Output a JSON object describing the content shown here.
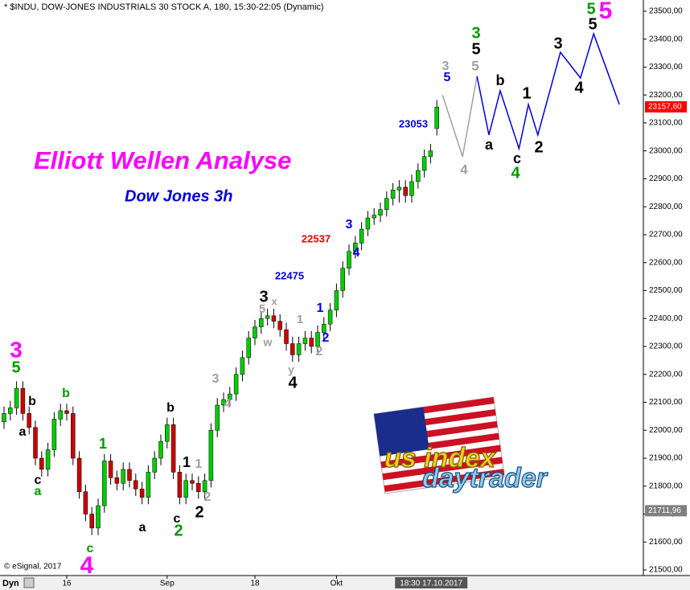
{
  "chart_data": {
    "type": "candlestick",
    "header": "* $INDU, DOW-JONES INDUSTRIALS 30 STOCK A, 180, 15:30-22:05 (Dynamic)",
    "title": "Elliott Wellen Analyse",
    "subtitle": "Dow Jones 3h",
    "footer": "© eSignal, 2017",
    "mode_label": "Dyn",
    "logo": {
      "line1": "us index",
      "line2": "daytrader"
    },
    "up_color": "#00cc00",
    "down_color": "#cc0000",
    "categories": [
      null,
      null,
      null,
      null,
      null,
      null,
      null,
      null,
      null,
      null,
      "16",
      null,
      null,
      null,
      null,
      null,
      null,
      null,
      null,
      null,
      null,
      null,
      null,
      null,
      null,
      null,
      "Sep",
      null,
      null,
      null,
      null,
      null,
      null,
      null,
      null,
      null,
      null,
      null,
      null,
      null,
      "18",
      null,
      null,
      null,
      null,
      null,
      null,
      null,
      null,
      null,
      null,
      null,
      null,
      "Okt",
      null,
      null,
      null,
      null,
      null,
      null,
      null,
      null,
      null,
      null,
      null,
      null,
      null,
      null,
      null,
      null
    ],
    "cursor_label": "18:30 17.10.2017",
    "open": [
      22030,
      22060,
      22080,
      22150,
      22060,
      22010,
      21900,
      21860,
      21930,
      22040,
      22070,
      22060,
      21900,
      21780,
      21700,
      21650,
      21730,
      21890,
      21830,
      21810,
      21860,
      21820,
      21790,
      21760,
      21850,
      21900,
      21960,
      22020,
      21850,
      21760,
      21820,
      21810,
      21780,
      21820,
      22000,
      22090,
      22110,
      22130,
      22200,
      22260,
      22330,
      22370,
      22400,
      22410,
      22390,
      22360,
      22310,
      22270,
      22310,
      22330,
      22300,
      22350,
      22380,
      22430,
      22500,
      22580,
      22640,
      22670,
      22720,
      22760,
      22770,
      22790,
      22830,
      22860,
      22870,
      22840,
      22890,
      22930,
      22980,
      23080
    ],
    "high": [
      22085,
      22105,
      22175,
      22175,
      22085,
      22035,
      21925,
      21955,
      22065,
      22095,
      22095,
      22085,
      21925,
      21805,
      21725,
      21755,
      21915,
      21915,
      21855,
      21885,
      21885,
      21845,
      21815,
      21875,
      21925,
      21985,
      22045,
      22045,
      21875,
      21845,
      21845,
      21835,
      21845,
      22025,
      22115,
      22135,
      22155,
      22225,
      22285,
      22355,
      22395,
      22425,
      22435,
      22435,
      22415,
      22385,
      22335,
      22335,
      22355,
      22355,
      22375,
      22405,
      22455,
      22525,
      22605,
      22665,
      22695,
      22745,
      22785,
      22795,
      22815,
      22855,
      22885,
      22895,
      22895,
      22915,
      22955,
      23005,
      23025,
      23182
    ],
    "low": [
      22005,
      22035,
      22055,
      22035,
      21985,
      21875,
      21835,
      21835,
      21905,
      22015,
      22035,
      21875,
      21755,
      21675,
      21625,
      21625,
      21705,
      21805,
      21785,
      21785,
      21795,
      21765,
      21735,
      21735,
      21825,
      21875,
      21935,
      21825,
      21735,
      21735,
      21785,
      21755,
      21755,
      21795,
      21975,
      22065,
      22085,
      22105,
      22175,
      22235,
      22305,
      22345,
      22375,
      22365,
      22335,
      22285,
      22245,
      22245,
      22285,
      22275,
      22275,
      22325,
      22355,
      22405,
      22475,
      22555,
      22615,
      22645,
      22695,
      22735,
      22745,
      22765,
      22805,
      22815,
      22815,
      22815,
      22865,
      22905,
      22955,
      23055
    ],
    "close": [
      22060,
      22080,
      22150,
      22060,
      22010,
      21900,
      21860,
      21930,
      22040,
      22070,
      22060,
      21900,
      21780,
      21700,
      21650,
      21730,
      21890,
      21830,
      21810,
      21860,
      21820,
      21790,
      21760,
      21850,
      21900,
      21960,
      22020,
      21850,
      21760,
      21820,
      21810,
      21780,
      21820,
      22000,
      22090,
      22110,
      22130,
      22200,
      22260,
      22330,
      22370,
      22400,
      22410,
      22390,
      22360,
      22310,
      22270,
      22310,
      22330,
      22300,
      22350,
      22380,
      22430,
      22500,
      22580,
      22640,
      22670,
      22720,
      22760,
      22770,
      22790,
      22830,
      22860,
      22870,
      22840,
      22890,
      22930,
      22980,
      23000,
      23157
    ],
    "ylim": [
      21480,
      23540
    ],
    "yticks": [
      {
        "value": 21500,
        "label": "21500,00"
      },
      {
        "value": 21600,
        "label": "21600,00"
      },
      {
        "value": 21700,
        "label": "21700,00"
      },
      {
        "value": 21800,
        "label": "21800,00"
      },
      {
        "value": 21900,
        "label": "21900,00"
      },
      {
        "value": 22000,
        "label": "22000,00"
      },
      {
        "value": 22100,
        "label": "22100,00"
      },
      {
        "value": 22200,
        "label": "22200,00"
      },
      {
        "value": 22300,
        "label": "22300,00"
      },
      {
        "value": 22400,
        "label": "22400,00"
      },
      {
        "value": 22500,
        "label": "22500,00"
      },
      {
        "value": 22600,
        "label": "22600,00"
      },
      {
        "value": 22700,
        "label": "22700,00"
      },
      {
        "value": 22800,
        "label": "22800,00"
      },
      {
        "value": 22900,
        "label": "22900,00"
      },
      {
        "value": 23000,
        "label": "23000,00"
      },
      {
        "value": 23100,
        "label": "23100,00"
      },
      {
        "value": 23200,
        "label": "23200,00"
      },
      {
        "value": 23300,
        "label": "23300,00"
      },
      {
        "value": 23400,
        "label": "23400,00"
      },
      {
        "value": 23500,
        "label": "23500,00"
      }
    ],
    "last_price": {
      "value": 23157.6,
      "label": "23157,60",
      "color": "#ff0000"
    },
    "marker_price": {
      "value": 21711.96,
      "label": "21711,96",
      "color": "#808080"
    },
    "projections": [
      {
        "color": "#a0a0a0",
        "x": [
          69.9,
          73.1,
          75.4
        ],
        "values": [
          23200,
          22979,
          23267
        ]
      },
      {
        "color": "#0000dd",
        "x": [
          75.4,
          77.3,
          79.1,
          82.1,
          83.6,
          85.1,
          88.7,
          91.9,
          94.0,
          98.1
        ],
        "values": [
          23267,
          23057,
          23215,
          23008,
          23166,
          23057,
          23353,
          23261,
          23419,
          23166
        ]
      }
    ],
    "annotations": [
      {
        "text": "3",
        "color": "#ff00ff"
      },
      {
        "text": "5",
        "color": "#009900"
      },
      {
        "text": "b",
        "color": "#000000"
      },
      {
        "text": "a",
        "color": "#000000"
      },
      {
        "text": "c",
        "color": "#000000"
      },
      {
        "text": "a",
        "color": "#009900"
      },
      {
        "text": "b",
        "color": "#009900"
      },
      {
        "text": "1",
        "color": "#009900"
      },
      {
        "text": "c",
        "color": "#009900"
      },
      {
        "text": "4",
        "color": "#ff00ff"
      },
      {
        "text": "b",
        "color": "#000000"
      },
      {
        "text": "a",
        "color": "#000000"
      },
      {
        "text": "1",
        "color": "#000000"
      },
      {
        "text": "1",
        "color": "#a0a0a0"
      },
      {
        "text": "2",
        "color": "#a0a0a0"
      },
      {
        "text": "c",
        "color": "#000000"
      },
      {
        "text": "2",
        "color": "#009900"
      },
      {
        "text": "2",
        "color": "#000000"
      },
      {
        "text": "3",
        "color": "#a0a0a0"
      },
      {
        "text": "4",
        "color": "#a0a0a0"
      },
      {
        "text": "3",
        "color": "#000000"
      },
      {
        "text": "5",
        "color": "#a0a0a0"
      },
      {
        "text": "x",
        "color": "#a0a0a0"
      },
      {
        "text": "w",
        "color": "#a0a0a0"
      },
      {
        "text": "1",
        "color": "#a0a0a0"
      },
      {
        "text": "y",
        "color": "#a0a0a0"
      },
      {
        "text": "4",
        "color": "#000000"
      },
      {
        "text": "2",
        "color": "#a0a0a0"
      },
      {
        "text": "1",
        "color": "#0000dd"
      },
      {
        "text": "2",
        "color": "#0000dd"
      },
      {
        "text": "3",
        "color": "#0000dd"
      },
      {
        "text": "4",
        "color": "#0000dd"
      },
      {
        "text": "22475",
        "color": "#0000dd"
      },
      {
        "text": "22537",
        "color": "#ee0000"
      },
      {
        "text": "23053",
        "color": "#0000dd"
      },
      {
        "text": "3",
        "color": "#a0a0a0"
      },
      {
        "text": "5",
        "color": "#0000dd"
      },
      {
        "text": "4",
        "color": "#a0a0a0"
      },
      {
        "text": "3",
        "color": "#009900"
      },
      {
        "text": "5",
        "color": "#000000"
      },
      {
        "text": "5",
        "color": "#a0a0a0"
      },
      {
        "text": "b",
        "color": "#000000"
      },
      {
        "text": "a",
        "color": "#000000"
      },
      {
        "text": "c",
        "color": "#000000"
      },
      {
        "text": "4",
        "color": "#009900"
      },
      {
        "text": "1",
        "color": "#000000"
      },
      {
        "text": "2",
        "color": "#000000"
      },
      {
        "text": "3",
        "color": "#000000"
      },
      {
        "text": "4",
        "color": "#000000"
      },
      {
        "text": "5",
        "color": "#009900"
      },
      {
        "text": "5",
        "color": "#ff00ff"
      },
      {
        "text": "5",
        "color": "#000000"
      }
    ]
  }
}
